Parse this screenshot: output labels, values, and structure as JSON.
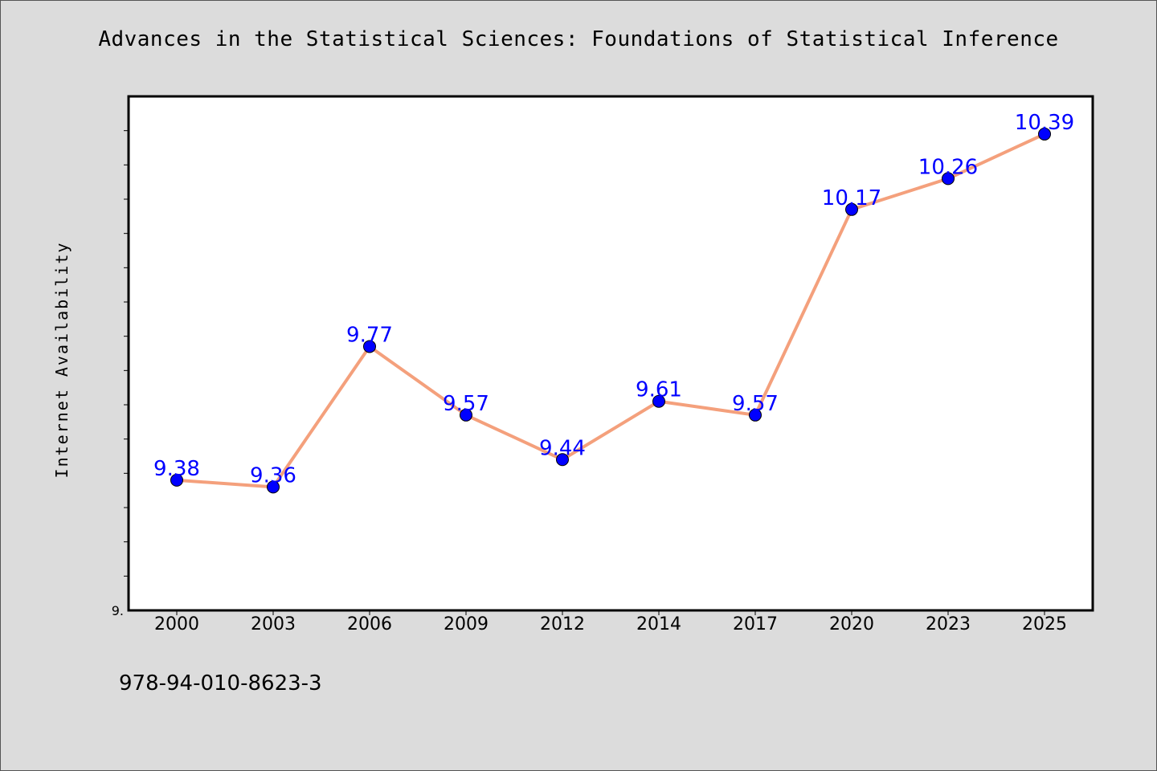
{
  "chart_data": {
    "type": "line",
    "title": "Advances in the Statistical Sciences: Foundations of Statistical Inference",
    "xlabel": "",
    "ylabel": "Internet Availability",
    "categories": [
      "2000",
      "2003",
      "2006",
      "2009",
      "2012",
      "2014",
      "2017",
      "2020",
      "2023",
      "2025"
    ],
    "series": [
      {
        "values": [
          9.38,
          9.36,
          9.77,
          9.57,
          9.44,
          9.61,
          9.57,
          10.17,
          10.26,
          10.39
        ]
      }
    ],
    "data_labels": [
      "9.38",
      "9.36",
      "9.77",
      "9.57",
      "9.44",
      "9.61",
      "9.57",
      "10.17",
      "10.26",
      "10.39"
    ],
    "ylim": [
      9.0,
      10.5
    ],
    "ytick_label": "9.",
    "grid": false,
    "legend": "none",
    "colors": {
      "line": "#f4a07c",
      "marker_fill": "#0000ff",
      "marker_edge": "#000000",
      "data_label": "#0000ff",
      "plot_bg": "#ffffff",
      "figure_bg": "#dcdcdc"
    }
  },
  "footer": {
    "isbn": "978-94-010-8623-3"
  }
}
